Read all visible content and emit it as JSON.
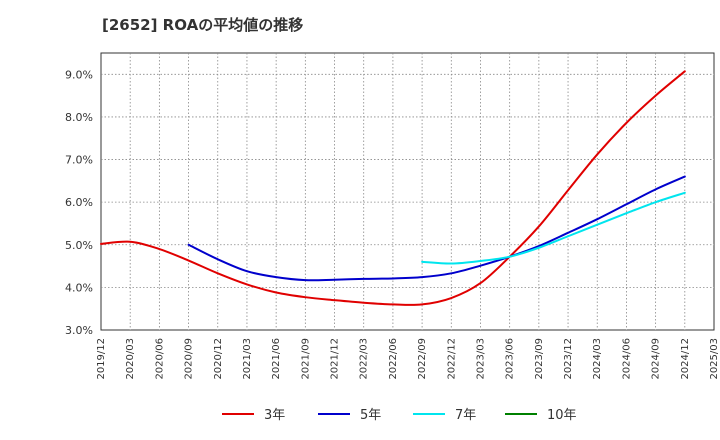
{
  "chart_data": {
    "type": "line",
    "title": "[2652]  ROAの平均値の推移",
    "xlabel": "",
    "ylabel": "",
    "grid": true,
    "legend_position": "bottom",
    "x_ticks": [
      "2019/12",
      "2020/03",
      "2020/06",
      "2020/09",
      "2020/12",
      "2021/03",
      "2021/06",
      "2021/09",
      "2021/12",
      "2022/03",
      "2022/06",
      "2022/09",
      "2022/12",
      "2023/03",
      "2023/06",
      "2023/09",
      "2023/12",
      "2024/03",
      "2024/06",
      "2024/09",
      "2024/12",
      "2025/03"
    ],
    "y_ticks": [
      "3.0%",
      "4.0%",
      "5.0%",
      "6.0%",
      "7.0%",
      "8.0%",
      "9.0%"
    ],
    "ylim": [
      3.0,
      9.5
    ],
    "series": [
      {
        "name": "3年",
        "color": "#e00000",
        "x": [
          "2019/12",
          "2020/03",
          "2020/06",
          "2020/09",
          "2020/12",
          "2021/03",
          "2021/06",
          "2021/09",
          "2021/12",
          "2022/03",
          "2022/06",
          "2022/09",
          "2022/12",
          "2023/03",
          "2023/06",
          "2023/09",
          "2023/12",
          "2024/03",
          "2024/06",
          "2024/09",
          "2024/12"
        ],
        "values": [
          5.02,
          5.07,
          4.9,
          4.63,
          4.33,
          4.07,
          3.88,
          3.77,
          3.7,
          3.64,
          3.6,
          3.6,
          3.75,
          4.1,
          4.72,
          5.43,
          6.28,
          7.12,
          7.86,
          8.5,
          9.07
        ]
      },
      {
        "name": "5年",
        "color": "#0000cc",
        "x": [
          "2020/09",
          "2020/12",
          "2021/03",
          "2021/06",
          "2021/09",
          "2021/12",
          "2022/03",
          "2022/06",
          "2022/09",
          "2022/12",
          "2023/03",
          "2023/06",
          "2023/09",
          "2023/12",
          "2024/03",
          "2024/06",
          "2024/09",
          "2024/12"
        ],
        "values": [
          5.0,
          4.66,
          4.38,
          4.24,
          4.17,
          4.18,
          4.2,
          4.21,
          4.24,
          4.33,
          4.51,
          4.72,
          4.97,
          5.28,
          5.6,
          5.95,
          6.3,
          6.6
        ]
      },
      {
        "name": "7年",
        "color": "#00e5ee",
        "x": [
          "2022/09",
          "2022/12",
          "2023/03",
          "2023/06",
          "2023/09",
          "2023/12",
          "2024/03",
          "2024/06",
          "2024/09",
          "2024/12"
        ],
        "values": [
          4.6,
          4.56,
          4.62,
          4.72,
          4.93,
          5.2,
          5.47,
          5.74,
          6.0,
          6.22
        ]
      },
      {
        "name": "10年",
        "color": "#008000",
        "x": [],
        "values": []
      }
    ]
  }
}
